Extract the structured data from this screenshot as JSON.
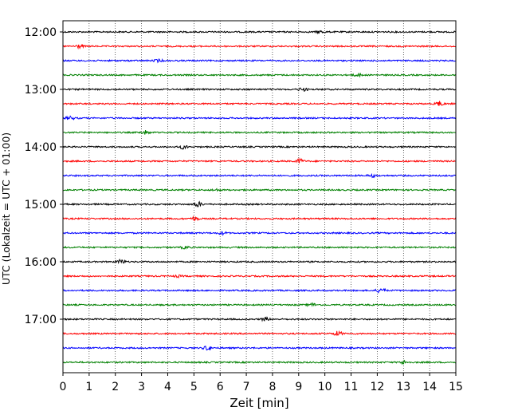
{
  "chart_data": {
    "type": "line",
    "xlabel": "Zeit  [min]",
    "ylabel": "UTC (Lokalzeit = UTC + 01:00)",
    "xlim": [
      0,
      15
    ],
    "x_ticks": [
      "0",
      "1",
      "2",
      "3",
      "4",
      "5",
      "6",
      "7",
      "8",
      "9",
      "10",
      "11",
      "12",
      "13",
      "14",
      "15"
    ],
    "y_tick_labels": [
      "12:00",
      "13:00",
      "14:00",
      "15:00",
      "16:00",
      "17:00"
    ],
    "y_ticks_minutes_after_1200": [
      0,
      60,
      120,
      180,
      240,
      300
    ],
    "grid": "vertical dotted at each minute",
    "trace_interval_minutes": 15,
    "trace_minutes_per_line": 15,
    "series_colors_cycle": [
      "#000000",
      "#ff0000",
      "#0000ff",
      "#008000"
    ],
    "traces": [
      {
        "start": "12:00",
        "color": "#000000"
      },
      {
        "start": "12:15",
        "color": "#ff0000"
      },
      {
        "start": "12:30",
        "color": "#0000ff"
      },
      {
        "start": "12:45",
        "color": "#008000"
      },
      {
        "start": "13:00",
        "color": "#000000"
      },
      {
        "start": "13:15",
        "color": "#ff0000"
      },
      {
        "start": "13:30",
        "color": "#0000ff"
      },
      {
        "start": "13:45",
        "color": "#008000"
      },
      {
        "start": "14:00",
        "color": "#000000"
      },
      {
        "start": "14:15",
        "color": "#ff0000"
      },
      {
        "start": "14:30",
        "color": "#0000ff"
      },
      {
        "start": "14:45",
        "color": "#008000"
      },
      {
        "start": "15:00",
        "color": "#000000"
      },
      {
        "start": "15:15",
        "color": "#ff0000"
      },
      {
        "start": "15:30",
        "color": "#0000ff"
      },
      {
        "start": "15:45",
        "color": "#008000"
      },
      {
        "start": "16:00",
        "color": "#000000"
      },
      {
        "start": "16:15",
        "color": "#ff0000"
      },
      {
        "start": "16:30",
        "color": "#0000ff"
      },
      {
        "start": "16:45",
        "color": "#008000"
      },
      {
        "start": "17:00",
        "color": "#000000"
      },
      {
        "start": "17:15",
        "color": "#ff0000"
      },
      {
        "start": "17:30",
        "color": "#0000ff"
      },
      {
        "start": "17:45",
        "color": "#008000"
      }
    ]
  }
}
